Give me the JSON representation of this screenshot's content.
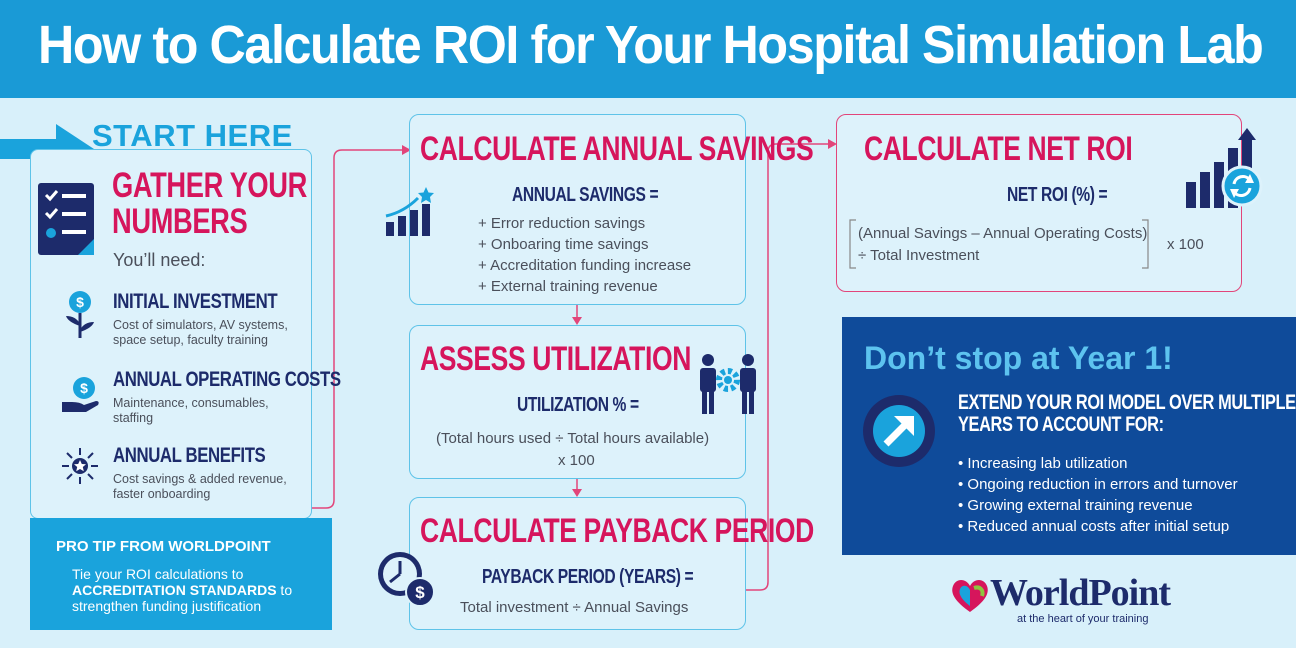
{
  "header": {
    "title": "How to Calculate ROI for Your Hospital Simulation Lab"
  },
  "start": {
    "label": "START HERE"
  },
  "gather": {
    "title_line1": "GATHER YOUR",
    "title_line2": "NUMBERS",
    "need": "You’ll need:",
    "items": [
      {
        "title": "INITIAL INVESTMENT",
        "desc_line1": "Cost of simulators, AV systems,",
        "desc_line2": "space setup, faculty training",
        "icon": "plant-dollar-icon"
      },
      {
        "title": "ANNUAL OPERATING COSTS",
        "desc_line1": "Maintenance, consumables,",
        "desc_line2": "staffing",
        "icon": "hand-coin-icon"
      },
      {
        "title": "ANNUAL BENEFITS",
        "desc_line1": "Cost savings & added revenue,",
        "desc_line2": "faster onboarding",
        "icon": "star-burst-icon"
      }
    ]
  },
  "protip": {
    "title": "PRO TIP FROM WORLDPOINT",
    "body_pre": "Tie your ROI calculations to",
    "body_bold": "ACCREDITATION STANDARDS",
    "body_post": " to strengthen funding justification"
  },
  "savings": {
    "title": "CALCULATE ANNUAL SAVINGS",
    "formula": "ANNUAL SAVINGS =",
    "items": [
      "+ Error reduction savings",
      "+ Onboaring time savings",
      "+ Accreditation funding increase",
      "+ External training revenue"
    ]
  },
  "utilization": {
    "title": "ASSESS UTILIZATION",
    "formula": "UTILIZATION % =",
    "line1": "(Total hours used ÷ Total hours available)",
    "line2": "x 100"
  },
  "payback": {
    "title": "CALCULATE PAYBACK PERIOD",
    "formula": "PAYBACK PERIOD (YEARS) =",
    "line1": "Total investment ÷ Annual Savings"
  },
  "netroi": {
    "title": "CALCULATE NET ROI",
    "formula": "NET ROI (%) =",
    "line1": "(Annual Savings – Annual Operating Costs)",
    "line2": "÷ Total Investment",
    "times": "x 100"
  },
  "extend": {
    "heading": "Don’t stop at Year 1!",
    "sub_line1": "EXTEND YOUR ROI MODEL OVER MULTIPLE",
    "sub_line2": "YEARS TO ACCOUNT FOR:",
    "items": [
      "• Increasing lab utilization",
      "• Ongoing reduction in errors and turnover",
      "• Growing external training revenue",
      "• Reduced annual costs after initial setup"
    ]
  },
  "brand": {
    "name": "WorldPoint",
    "tagline": "at the heart of your training"
  },
  "colors": {
    "header": "#1a9ad6",
    "pink": "#d6155c",
    "navy": "#1d2b6b",
    "light": "#ddf2fb",
    "dark_panel": "#0f4b9a",
    "accent": "#1aa3dc"
  }
}
